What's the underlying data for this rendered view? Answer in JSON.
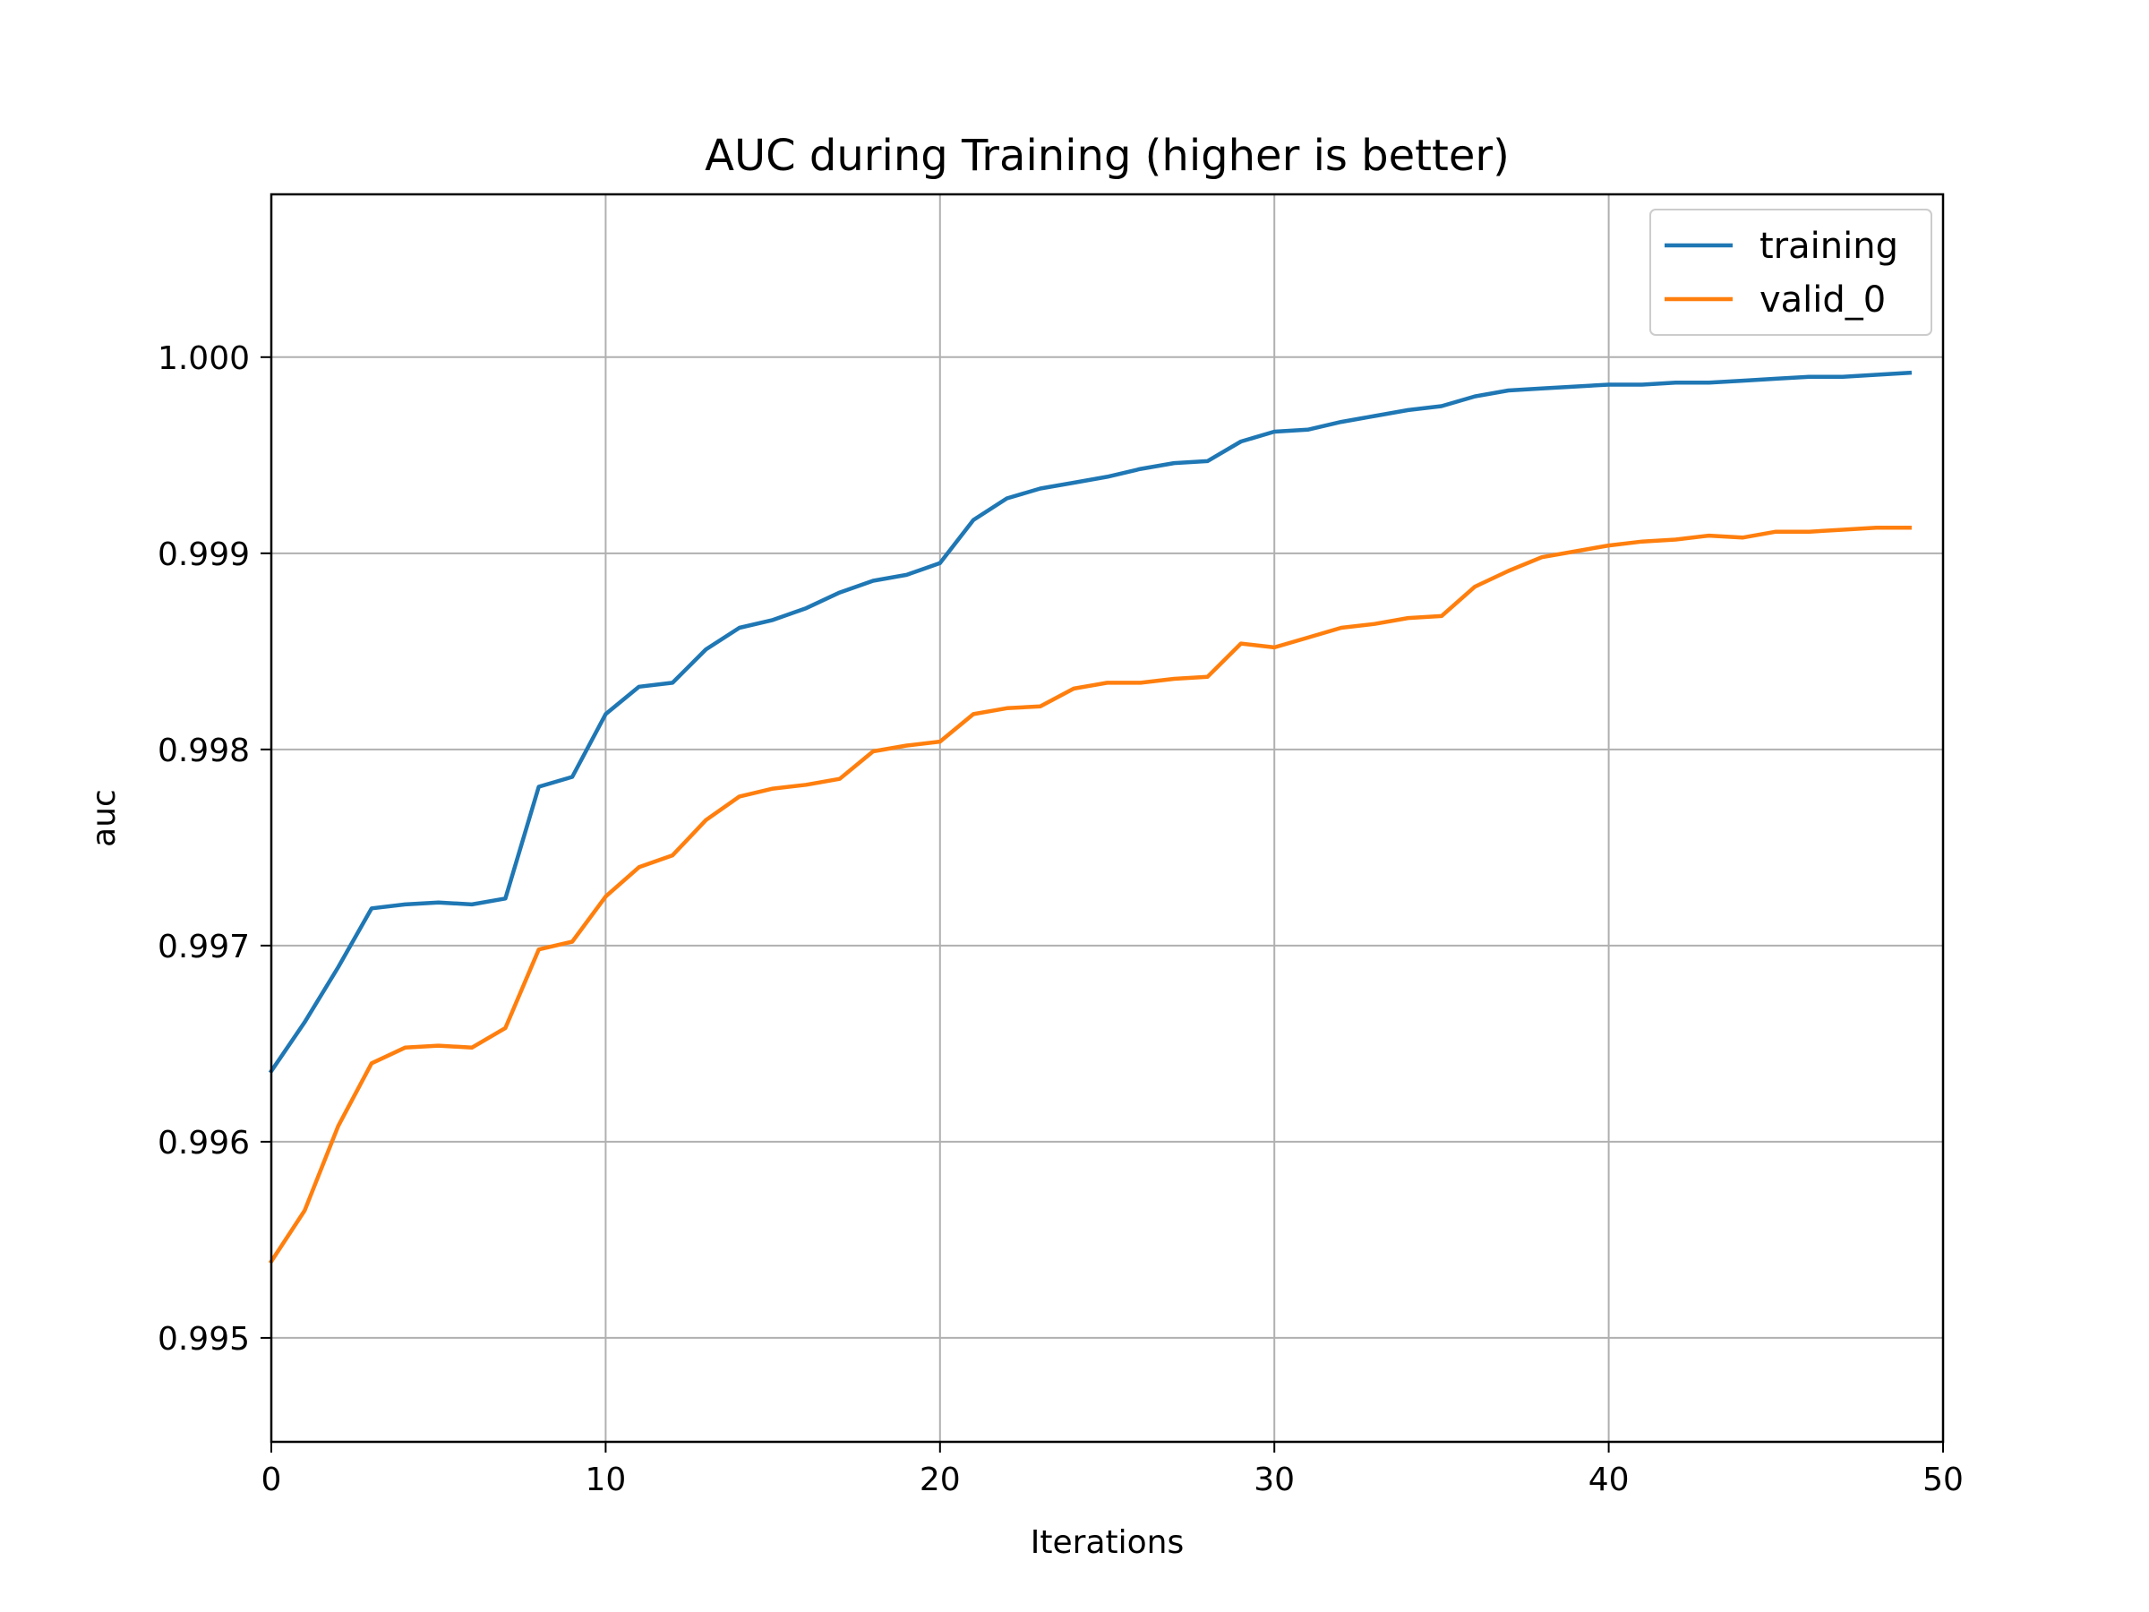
{
  "chart_data": {
    "type": "line",
    "title": "AUC during Training (higher is better)",
    "xlabel": "Iterations",
    "ylabel": "auc",
    "xlim": [
      0,
      50
    ],
    "ylim": [
      0.99447,
      1.00083
    ],
    "xticks": [
      0,
      10,
      20,
      30,
      40,
      50
    ],
    "yticks": [
      0.995,
      0.996,
      0.997,
      0.998,
      0.999,
      1.0
    ],
    "ytick_labels": [
      "0.995",
      "0.996",
      "0.997",
      "0.998",
      "0.999",
      "1.000"
    ],
    "grid": true,
    "legend_position": "top-right",
    "x": [
      0,
      1,
      2,
      3,
      4,
      5,
      6,
      7,
      8,
      9,
      10,
      11,
      12,
      13,
      14,
      15,
      16,
      17,
      18,
      19,
      20,
      21,
      22,
      23,
      24,
      25,
      26,
      27,
      28,
      29,
      30,
      31,
      32,
      33,
      34,
      35,
      36,
      37,
      38,
      39,
      40,
      41,
      42,
      43,
      44,
      45,
      46,
      47,
      48,
      49
    ],
    "series": [
      {
        "name": "training",
        "color": "#1f77b4",
        "values": [
          0.99636,
          0.99661,
          0.99689,
          0.99719,
          0.99721,
          0.99722,
          0.99721,
          0.99724,
          0.99781,
          0.99786,
          0.99818,
          0.99832,
          0.99834,
          0.99851,
          0.99862,
          0.99866,
          0.99872,
          0.9988,
          0.99886,
          0.99889,
          0.99895,
          0.99917,
          0.99928,
          0.99933,
          0.99936,
          0.99939,
          0.99943,
          0.99946,
          0.99947,
          0.99957,
          0.99962,
          0.99963,
          0.99967,
          0.9997,
          0.99973,
          0.99975,
          0.9998,
          0.99983,
          0.99984,
          0.99985,
          0.99986,
          0.99986,
          0.99987,
          0.99987,
          0.99988,
          0.99989,
          0.9999,
          0.9999,
          0.99991,
          0.99992
        ]
      },
      {
        "name": "valid_0",
        "color": "#ff7f0e",
        "values": [
          0.99539,
          0.99565,
          0.99608,
          0.9964,
          0.99648,
          0.99649,
          0.99648,
          0.99658,
          0.99698,
          0.99702,
          0.99725,
          0.9974,
          0.99746,
          0.99764,
          0.99776,
          0.9978,
          0.99782,
          0.99785,
          0.99799,
          0.99802,
          0.99804,
          0.99818,
          0.99821,
          0.99822,
          0.99831,
          0.99834,
          0.99834,
          0.99836,
          0.99837,
          0.99854,
          0.99852,
          0.99857,
          0.99862,
          0.99864,
          0.99867,
          0.99868,
          0.99883,
          0.99891,
          0.99898,
          0.99901,
          0.99904,
          0.99906,
          0.99907,
          0.99909,
          0.99908,
          0.99911,
          0.99911,
          0.99912,
          0.99913,
          0.99913
        ]
      }
    ]
  }
}
